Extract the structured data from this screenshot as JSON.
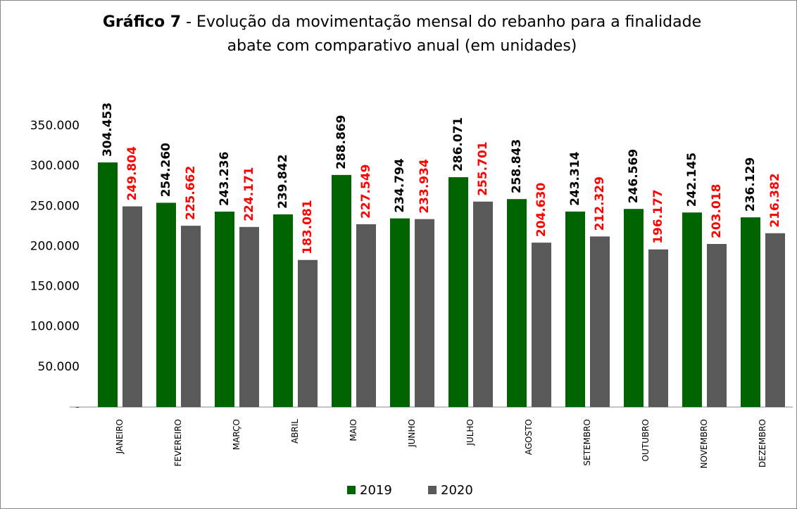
{
  "chart_data": {
    "type": "bar",
    "title_bold": "Gráfico 7",
    "title": "- Evolução da movimentação mensal do rebanho para a finalidade abate com comparativo anual (em unidades)",
    "categories": [
      "JANEIRO",
      "FEVEREIRO",
      "MARÇO",
      "ABRIL",
      "MAIO",
      "JUNHO",
      "JULHO",
      "AGOSTO",
      "SETEMBRO",
      "OUTUBRO",
      "NOVEMBRO",
      "DEZEMBRO"
    ],
    "series": [
      {
        "name": "2019",
        "color": "#006400",
        "label_color": "#000000",
        "values": [
          304453,
          254260,
          243236,
          239842,
          288869,
          234794,
          286071,
          258843,
          243314,
          246569,
          242145,
          236129
        ],
        "value_labels": [
          "304.453",
          "254.260",
          "243.236",
          "239.842",
          "288.869",
          "234.794",
          "286.071",
          "258.843",
          "243.314",
          "246.569",
          "242.145",
          "236.129"
        ]
      },
      {
        "name": "2020",
        "color": "#595959",
        "label_color": "#ff0000",
        "values": [
          249804,
          225662,
          224171,
          183081,
          227549,
          233934,
          255701,
          204630,
          212329,
          196177,
          203018,
          216382
        ],
        "value_labels": [
          "249.804",
          "225.662",
          "224.171",
          "183.081",
          "227.549",
          "233.934",
          "255.701",
          "204.630",
          "212.329",
          "196.177",
          "203.018",
          "216.382"
        ]
      }
    ],
    "ylim": [
      0,
      350000
    ],
    "yticks": [
      {
        "value": 0,
        "label": "-"
      },
      {
        "value": 50000,
        "label": "50.000"
      },
      {
        "value": 100000,
        "label": "100.000"
      },
      {
        "value": 150000,
        "label": "150.000"
      },
      {
        "value": 200000,
        "label": "200.000"
      },
      {
        "value": 250000,
        "label": "250.000"
      },
      {
        "value": 300000,
        "label": "300.000"
      },
      {
        "value": 350000,
        "label": "350.000"
      }
    ],
    "legend": "bottom"
  }
}
